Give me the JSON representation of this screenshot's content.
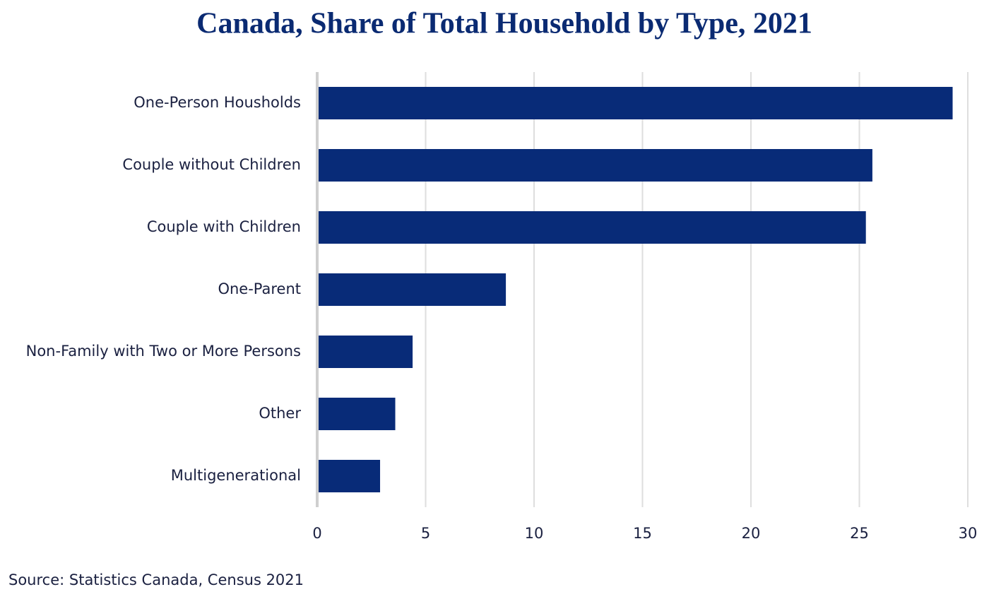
{
  "chart_data": {
    "type": "barh",
    "title": "Canada, Share of Total Household by Type, 2021",
    "categories": [
      "One-Person Housholds",
      "Couple without Children",
      "Couple with Children",
      "One-Parent",
      "Non-Family with Two or More Persons",
      "Other",
      "Multigenerational"
    ],
    "values": [
      29.3,
      25.6,
      25.3,
      8.7,
      4.4,
      3.6,
      2.9
    ],
    "color": "#082b78",
    "xlim": [
      0,
      30
    ],
    "xticks": [
      0,
      5,
      10,
      15,
      20,
      25,
      30
    ],
    "grid": true,
    "source": "Source: Statistics Canada, Census 2021"
  }
}
